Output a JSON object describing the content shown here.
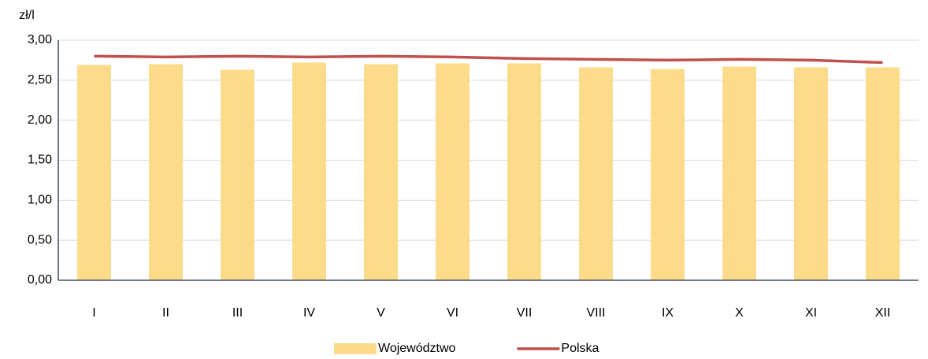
{
  "chart_data": {
    "type": "bar_line",
    "y_label": "zł/l",
    "categories": [
      "I",
      "II",
      "III",
      "IV",
      "V",
      "VI",
      "VII",
      "VIII",
      "IX",
      "X",
      "XI",
      "XII"
    ],
    "series": [
      {
        "name": "Województwo",
        "type": "bar",
        "color": "#fcdc8b",
        "values": [
          2.69,
          2.7,
          2.63,
          2.72,
          2.7,
          2.71,
          2.71,
          2.66,
          2.64,
          2.67,
          2.66,
          2.66
        ]
      },
      {
        "name": "Polska",
        "type": "line",
        "color": "#c0504d",
        "values": [
          2.8,
          2.79,
          2.8,
          2.79,
          2.8,
          2.79,
          2.77,
          2.76,
          2.75,
          2.76,
          2.75,
          2.72
        ]
      }
    ],
    "ylim": [
      0,
      3
    ],
    "yticks": [
      {
        "value": 0,
        "label": "0,00"
      },
      {
        "value": 0.5,
        "label": "0,50"
      },
      {
        "value": 1,
        "label": "1,00"
      },
      {
        "value": 1.5,
        "label": "1,50"
      },
      {
        "value": 2,
        "label": "2,00"
      },
      {
        "value": 2.5,
        "label": "2,50"
      },
      {
        "value": 3,
        "label": "3,00"
      }
    ],
    "grid": true,
    "legend": "bottom"
  }
}
